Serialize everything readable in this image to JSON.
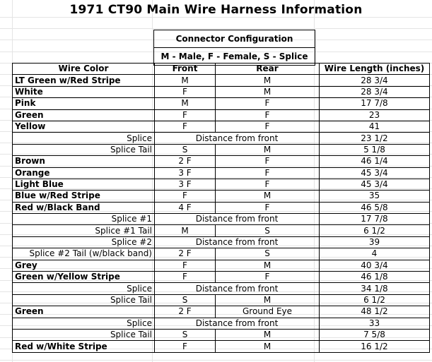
{
  "title": "1971 CT90 Main Wire Harness Information",
  "connector": {
    "heading": "Connector Configuration",
    "legend": "M - Male, F - Female, S - Splice"
  },
  "headers": {
    "wire_color": "Wire Color",
    "front": "Front",
    "rear": "Rear",
    "length": "Wire Length (inches)"
  },
  "rows": [
    {
      "type": "wire",
      "label": "LT Green w/Red Stripe",
      "front": "M",
      "rear": "M",
      "length": "28 3/4"
    },
    {
      "type": "wire",
      "label": "White",
      "front": "F",
      "rear": "M",
      "length": "28 3/4"
    },
    {
      "type": "wire",
      "label": "Pink",
      "front": "M",
      "rear": "F",
      "length": "17 7/8"
    },
    {
      "type": "wire",
      "label": "Green",
      "front": "F",
      "rear": "F",
      "length": "23"
    },
    {
      "type": "wire",
      "label": "Yellow",
      "front": "F",
      "rear": "F",
      "length": "41"
    },
    {
      "type": "span",
      "label": "Splice",
      "span": "Distance from front",
      "length": "23 1/2"
    },
    {
      "type": "sub",
      "label": "Splice Tail",
      "front": "S",
      "rear": "M",
      "length": "5 1/8"
    },
    {
      "type": "wire",
      "label": "Brown",
      "front": "2 F",
      "rear": "F",
      "length": "46 1/4"
    },
    {
      "type": "wire",
      "label": "Orange",
      "front": "3 F",
      "rear": "F",
      "length": "45 3/4"
    },
    {
      "type": "wire",
      "label": "Light Blue",
      "front": "3 F",
      "rear": "F",
      "length": "45 3/4"
    },
    {
      "type": "wire",
      "label": "Blue w/Red Stripe",
      "front": "F",
      "rear": "M",
      "length": "35"
    },
    {
      "type": "wire",
      "label": "Red w/Black Band",
      "front": "4 F",
      "rear": "F",
      "length": "46 5/8"
    },
    {
      "type": "span",
      "label": "Splice #1",
      "span": "Distance from front",
      "length": "17 7/8"
    },
    {
      "type": "sub",
      "label": "Splice #1 Tail",
      "front": "M",
      "rear": "S",
      "length": "6 1/2"
    },
    {
      "type": "span",
      "label": "Splice #2",
      "span": "Distance from front",
      "length": "39"
    },
    {
      "type": "sub",
      "label": "Splice #2 Tail (w/black band)",
      "front": "2 F",
      "rear": "S",
      "length": "4"
    },
    {
      "type": "wire",
      "label": "Grey",
      "front": "F",
      "rear": "M",
      "length": "40 3/4"
    },
    {
      "type": "wire",
      "label": "Green w/Yellow Stripe",
      "front": "F",
      "rear": "F",
      "length": "46 1/8"
    },
    {
      "type": "span",
      "label": "Splice",
      "span": "Distance from front",
      "length": "34 1/8"
    },
    {
      "type": "sub",
      "label": "Splice Tail",
      "front": "S",
      "rear": "M",
      "length": "6 1/2"
    },
    {
      "type": "wire",
      "label": "Green",
      "front": "2 F",
      "rear": "Ground Eye",
      "length": "48 1/2"
    },
    {
      "type": "span",
      "label": "Splice",
      "span": "Distance from front",
      "length": "33"
    },
    {
      "type": "sub",
      "label": "Splice Tail",
      "front": "S",
      "rear": "M",
      "length": "7 5/8"
    },
    {
      "type": "wire",
      "label": "Red w/White Stripe",
      "front": "F",
      "rear": "M",
      "length": "16 1/2"
    }
  ]
}
